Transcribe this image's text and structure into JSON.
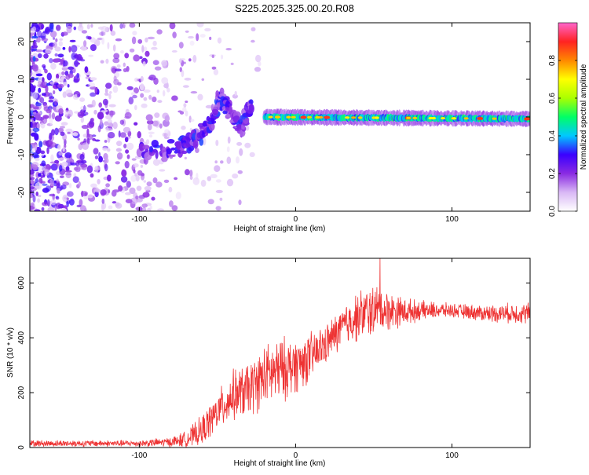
{
  "title": "S225.2025.325.00.20.R08",
  "colors": {
    "signal": "#ee3333",
    "noise": "#8833ee",
    "axis": "#000000",
    "background": "#ffffff"
  },
  "chart_data": [
    {
      "type": "heatmap",
      "name": "spectrogram",
      "title": "S225.2025.325.00.20.R08",
      "xlabel": "Height of straight line (km)",
      "ylabel": "Frequency (Hz)",
      "xlim": [
        -170,
        150
      ],
      "ylim": [
        -25,
        25
      ],
      "xticks": [
        -100,
        0,
        100
      ],
      "yticks": [
        -20,
        -10,
        0,
        10,
        20
      ],
      "colorbar": {
        "label": "Normalized spectral amplitude",
        "range": [
          0,
          1
        ],
        "ticks": [
          "0.0",
          "0.2",
          "0.4",
          "0.6",
          "0.8"
        ],
        "tick_values": [
          0,
          0.2,
          0.4,
          0.6,
          0.8
        ],
        "colormap": [
          "#ffffff",
          "#d9b8f5",
          "#8a2be2",
          "#3a00ff",
          "#00c8ff",
          "#00ff66",
          "#aaff00",
          "#ffff00",
          "#ff8800",
          "#ff2222",
          "#ff66cc"
        ]
      },
      "features": {
        "noise_extent_km": [
          -170,
          -20
        ],
        "signal_line": {
          "x": [
            -20,
            150
          ],
          "frequency_hz": [
            0,
            -0.5
          ],
          "typical_amplitude": 0.45
        },
        "hot_spots_km": [
          5,
          20,
          72,
          118,
          148
        ],
        "branch": {
          "x": [
            -100,
            -75,
            -65,
            -55,
            -48,
            -42,
            -35,
            -28
          ],
          "y": [
            -9,
            -8,
            -6,
            -2,
            5,
            1,
            -3,
            4
          ]
        }
      }
    },
    {
      "type": "line",
      "name": "snr-profile",
      "xlabel": "Height of straight line (km)",
      "ylabel": "SNR (10 * v/v)",
      "xlim": [
        -170,
        150
      ],
      "ylim": [
        0,
        690
      ],
      "xticks": [
        -100,
        0,
        100
      ],
      "yticks": [
        0,
        200,
        400,
        600
      ],
      "series": [
        {
          "name": "SNR",
          "envelope_x": [
            -170,
            -100,
            -80,
            -70,
            -60,
            -50,
            -40,
            -30,
            -20,
            -10,
            0,
            10,
            20,
            30,
            40,
            50,
            60,
            70,
            80,
            100,
            120,
            150
          ],
          "envelope_mean": [
            15,
            15,
            20,
            30,
            60,
            130,
            190,
            210,
            260,
            280,
            300,
            330,
            380,
            440,
            480,
            500,
            500,
            495,
            500,
            500,
            490,
            490
          ],
          "envelope_spread": [
            12,
            12,
            18,
            30,
            55,
            70,
            90,
            100,
            110,
            120,
            100,
            90,
            70,
            75,
            90,
            95,
            70,
            50,
            35,
            25,
            30,
            40
          ],
          "peak_value": 690,
          "peak_x": 54
        }
      ]
    }
  ]
}
